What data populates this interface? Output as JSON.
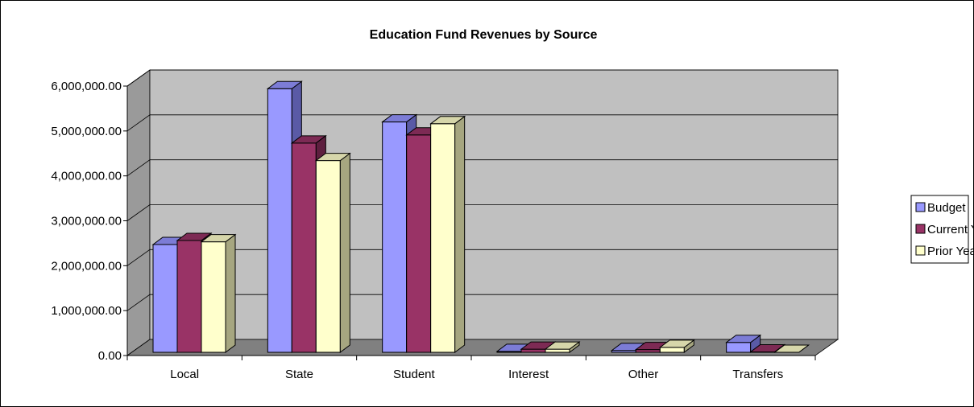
{
  "chart_data": {
    "type": "bar",
    "title": "Education Fund Revenues by Source",
    "categories": [
      "Local",
      "State",
      "Student",
      "Interest",
      "Other",
      "Transfers"
    ],
    "series": [
      {
        "name": "Budget",
        "values": [
          2400000,
          5870000,
          5130000,
          20000,
          40000,
          220000
        ]
      },
      {
        "name": "Current Year",
        "values": [
          2490000,
          4660000,
          4840000,
          70000,
          60000,
          10000
        ]
      },
      {
        "name": "Prior Year",
        "values": [
          2460000,
          4270000,
          5090000,
          70000,
          110000,
          0
        ]
      }
    ],
    "ylim": [
      0,
      6000000
    ],
    "yticks": [
      "0.00",
      "1,000,000.00",
      "2,000,000.00",
      "3,000,000.00",
      "4,000,000.00",
      "5,000,000.00",
      "6,000,000.00"
    ],
    "grid": true,
    "legend_position": "right"
  },
  "colors": {
    "budget_front": "#9999ff",
    "budget_side": "#5a5aa6",
    "budget_top": "#7c7cd6",
    "current_front": "#993366",
    "current_side": "#5e1f3f",
    "current_top": "#7d2a54",
    "prior_front": "#ffffcc",
    "prior_side": "#a6a680",
    "prior_top": "#d6d6aa",
    "wall": "#c0c0c0",
    "wall_side": "#9a9a9a",
    "floor": "#808080"
  }
}
